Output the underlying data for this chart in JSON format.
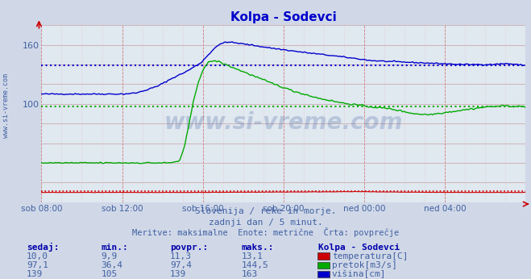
{
  "title": "Kolpa - Sodevci",
  "bg_color": "#d0d8e8",
  "plot_bg_color": "#e0e8f0",
  "title_color": "#0000cc",
  "text_color": "#4060a0",
  "bold_color": "#0000aa",
  "temp_color": "#cc0000",
  "pretok_color": "#00aa00",
  "visina_color": "#0000cc",
  "grid_h_color": "#c8a0a0",
  "grid_v_color": "#d08080",
  "grid_v_fine_color": "#e0c0c0",
  "subtitle_lines": [
    "Slovenija / reke in morje.",
    "zadnji dan / 5 minut.",
    "Meritve: maksimalne  Enote: metrične  Črta: povprečje"
  ],
  "table_headers": [
    "sedaj:",
    "min.:",
    "povpr.:",
    "maks.:"
  ],
  "table_col_label": "Kolpa - Sodevci",
  "table_rows": [
    {
      "sedaj": "10,0",
      "min": "9,9",
      "povpr": "11,3",
      "maks": "13,1",
      "color": "#cc0000",
      "label": "temperatura[C]"
    },
    {
      "sedaj": "97,1",
      "min": "36,4",
      "povpr": "97,4",
      "maks": "144,5",
      "color": "#00aa00",
      "label": "pretok[m3/s]"
    },
    {
      "sedaj": "139",
      "min": "105",
      "povpr": "139",
      "maks": "163",
      "color": "#0000cc",
      "label": "višina[cm]"
    }
  ],
  "ylim": [
    0,
    180
  ],
  "ytick_vals": [
    100,
    160
  ],
  "xtick_labels": [
    "sob 08:00",
    "sob 12:00",
    "sob 16:00",
    "sob 20:00",
    "ned 00:00",
    "ned 04:00"
  ],
  "temp_povpr": 11.3,
  "pretok_povpr": 97.4,
  "visina_povpr": 139,
  "n_points": 288,
  "watermark": "www.si-vreme.com"
}
